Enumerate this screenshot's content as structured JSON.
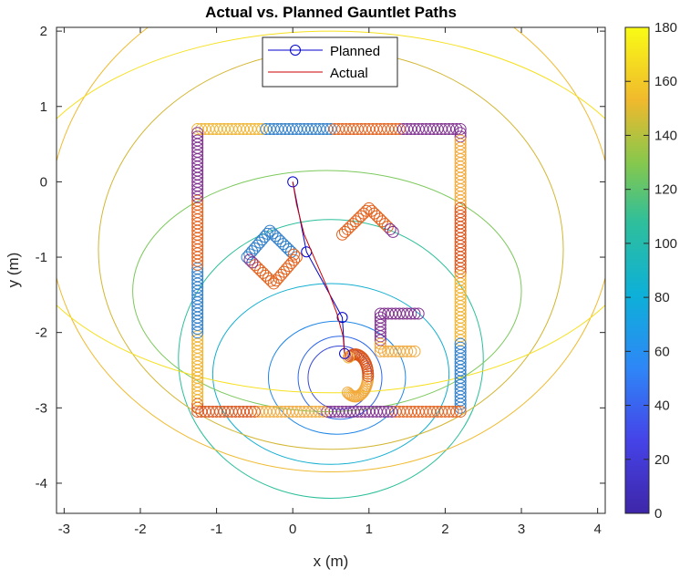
{
  "chart_data": {
    "type": "scatter",
    "title": "Actual vs. Planned Gauntlet Paths",
    "xlabel": "x (m)",
    "ylabel": "y (m)",
    "xlim": [
      -3.1,
      4.1
    ],
    "ylim": [
      -4.4,
      2.05
    ],
    "xticks": [
      -3,
      -2,
      -1,
      0,
      1,
      2,
      3,
      4
    ],
    "yticks": [
      2,
      1,
      0,
      -1,
      -2,
      -3,
      -4
    ],
    "colorbar": {
      "min": 0,
      "max": 180,
      "ticks": [
        180,
        160,
        140,
        120,
        100,
        80,
        60,
        40,
        20,
        0
      ]
    },
    "legend": {
      "position": "top-center",
      "entries": [
        "Planned",
        "Actual"
      ]
    },
    "series": [
      {
        "name": "Planned",
        "style": "line+circle-marker",
        "color": "#0000cc",
        "x": [
          0.0,
          0.18,
          0.65,
          0.68
        ],
        "y": [
          0.0,
          -0.93,
          -1.8,
          -2.28
        ]
      },
      {
        "name": "Actual",
        "style": "line",
        "color": "#cc0000",
        "x": [
          0.0,
          0.05,
          0.15,
          0.3,
          0.45,
          0.58,
          0.66,
          0.68
        ],
        "y": [
          0.0,
          -0.3,
          -0.7,
          -1.05,
          -1.4,
          -1.75,
          -2.05,
          -2.28
        ]
      }
    ],
    "obstacles": [
      {
        "kind": "polyline",
        "points": [
          [
            -1.25,
            0.7
          ],
          [
            2.2,
            0.7
          ],
          [
            2.2,
            -3.05
          ],
          [
            -1.25,
            -3.05
          ],
          [
            -1.25,
            0.7
          ]
        ]
      },
      {
        "kind": "polyline",
        "points": [
          [
            -0.6,
            -1.0
          ],
          [
            -0.3,
            -0.65
          ],
          [
            0.05,
            -1.0
          ],
          [
            -0.25,
            -1.35
          ],
          [
            -0.6,
            -1.0
          ]
        ]
      },
      {
        "kind": "polyline",
        "points": [
          [
            0.65,
            -0.7
          ],
          [
            1.0,
            -0.35
          ],
          [
            1.35,
            -0.7
          ]
        ]
      },
      {
        "kind": "polyline",
        "points": [
          [
            1.65,
            -1.75
          ],
          [
            1.15,
            -1.75
          ],
          [
            1.15,
            -2.25
          ],
          [
            1.65,
            -2.25
          ]
        ]
      },
      {
        "kind": "circle",
        "cx": 0.82,
        "cy": -2.57,
        "r": 0.28
      }
    ],
    "contours": [
      {
        "level": 20,
        "color": "#3a4bd6",
        "cx": 0.62,
        "cy": -2.6,
        "rx": 0.42,
        "ry": 0.42
      },
      {
        "level": 40,
        "color": "#2d68e8",
        "cx": 0.62,
        "cy": -2.6,
        "rx": 0.55,
        "ry": 0.55
      },
      {
        "level": 60,
        "color": "#1f86e8",
        "cx": 0.58,
        "cy": -2.6,
        "rx": 0.9,
        "ry": 0.75
      },
      {
        "level": 80,
        "color": "#11aed1",
        "cx": 0.5,
        "cy": -2.55,
        "rx": 1.55,
        "ry": 1.2
      },
      {
        "level": 100,
        "color": "#2bbf9a",
        "cx": 0.5,
        "cy": -2.35,
        "rx": 2.0,
        "ry": 1.85
      },
      {
        "level": 120,
        "color": "#7cc95c",
        "cx": 0.45,
        "cy": -1.45,
        "rx": 2.55,
        "ry": 1.6
      },
      {
        "level": 140,
        "color": "#d3b631",
        "cx": 0.5,
        "cy": -0.9,
        "rx": 3.05,
        "ry": 2.65
      },
      {
        "level": 160,
        "color": "#f0bb32",
        "cx": 0.5,
        "cy": -0.5,
        "rx": 3.7,
        "ry": 3.35
      },
      {
        "level": 180,
        "color": "#f6e01f",
        "cx": 0.5,
        "cy": -0.4,
        "rx": 4.2,
        "ry": 2.4
      }
    ]
  }
}
